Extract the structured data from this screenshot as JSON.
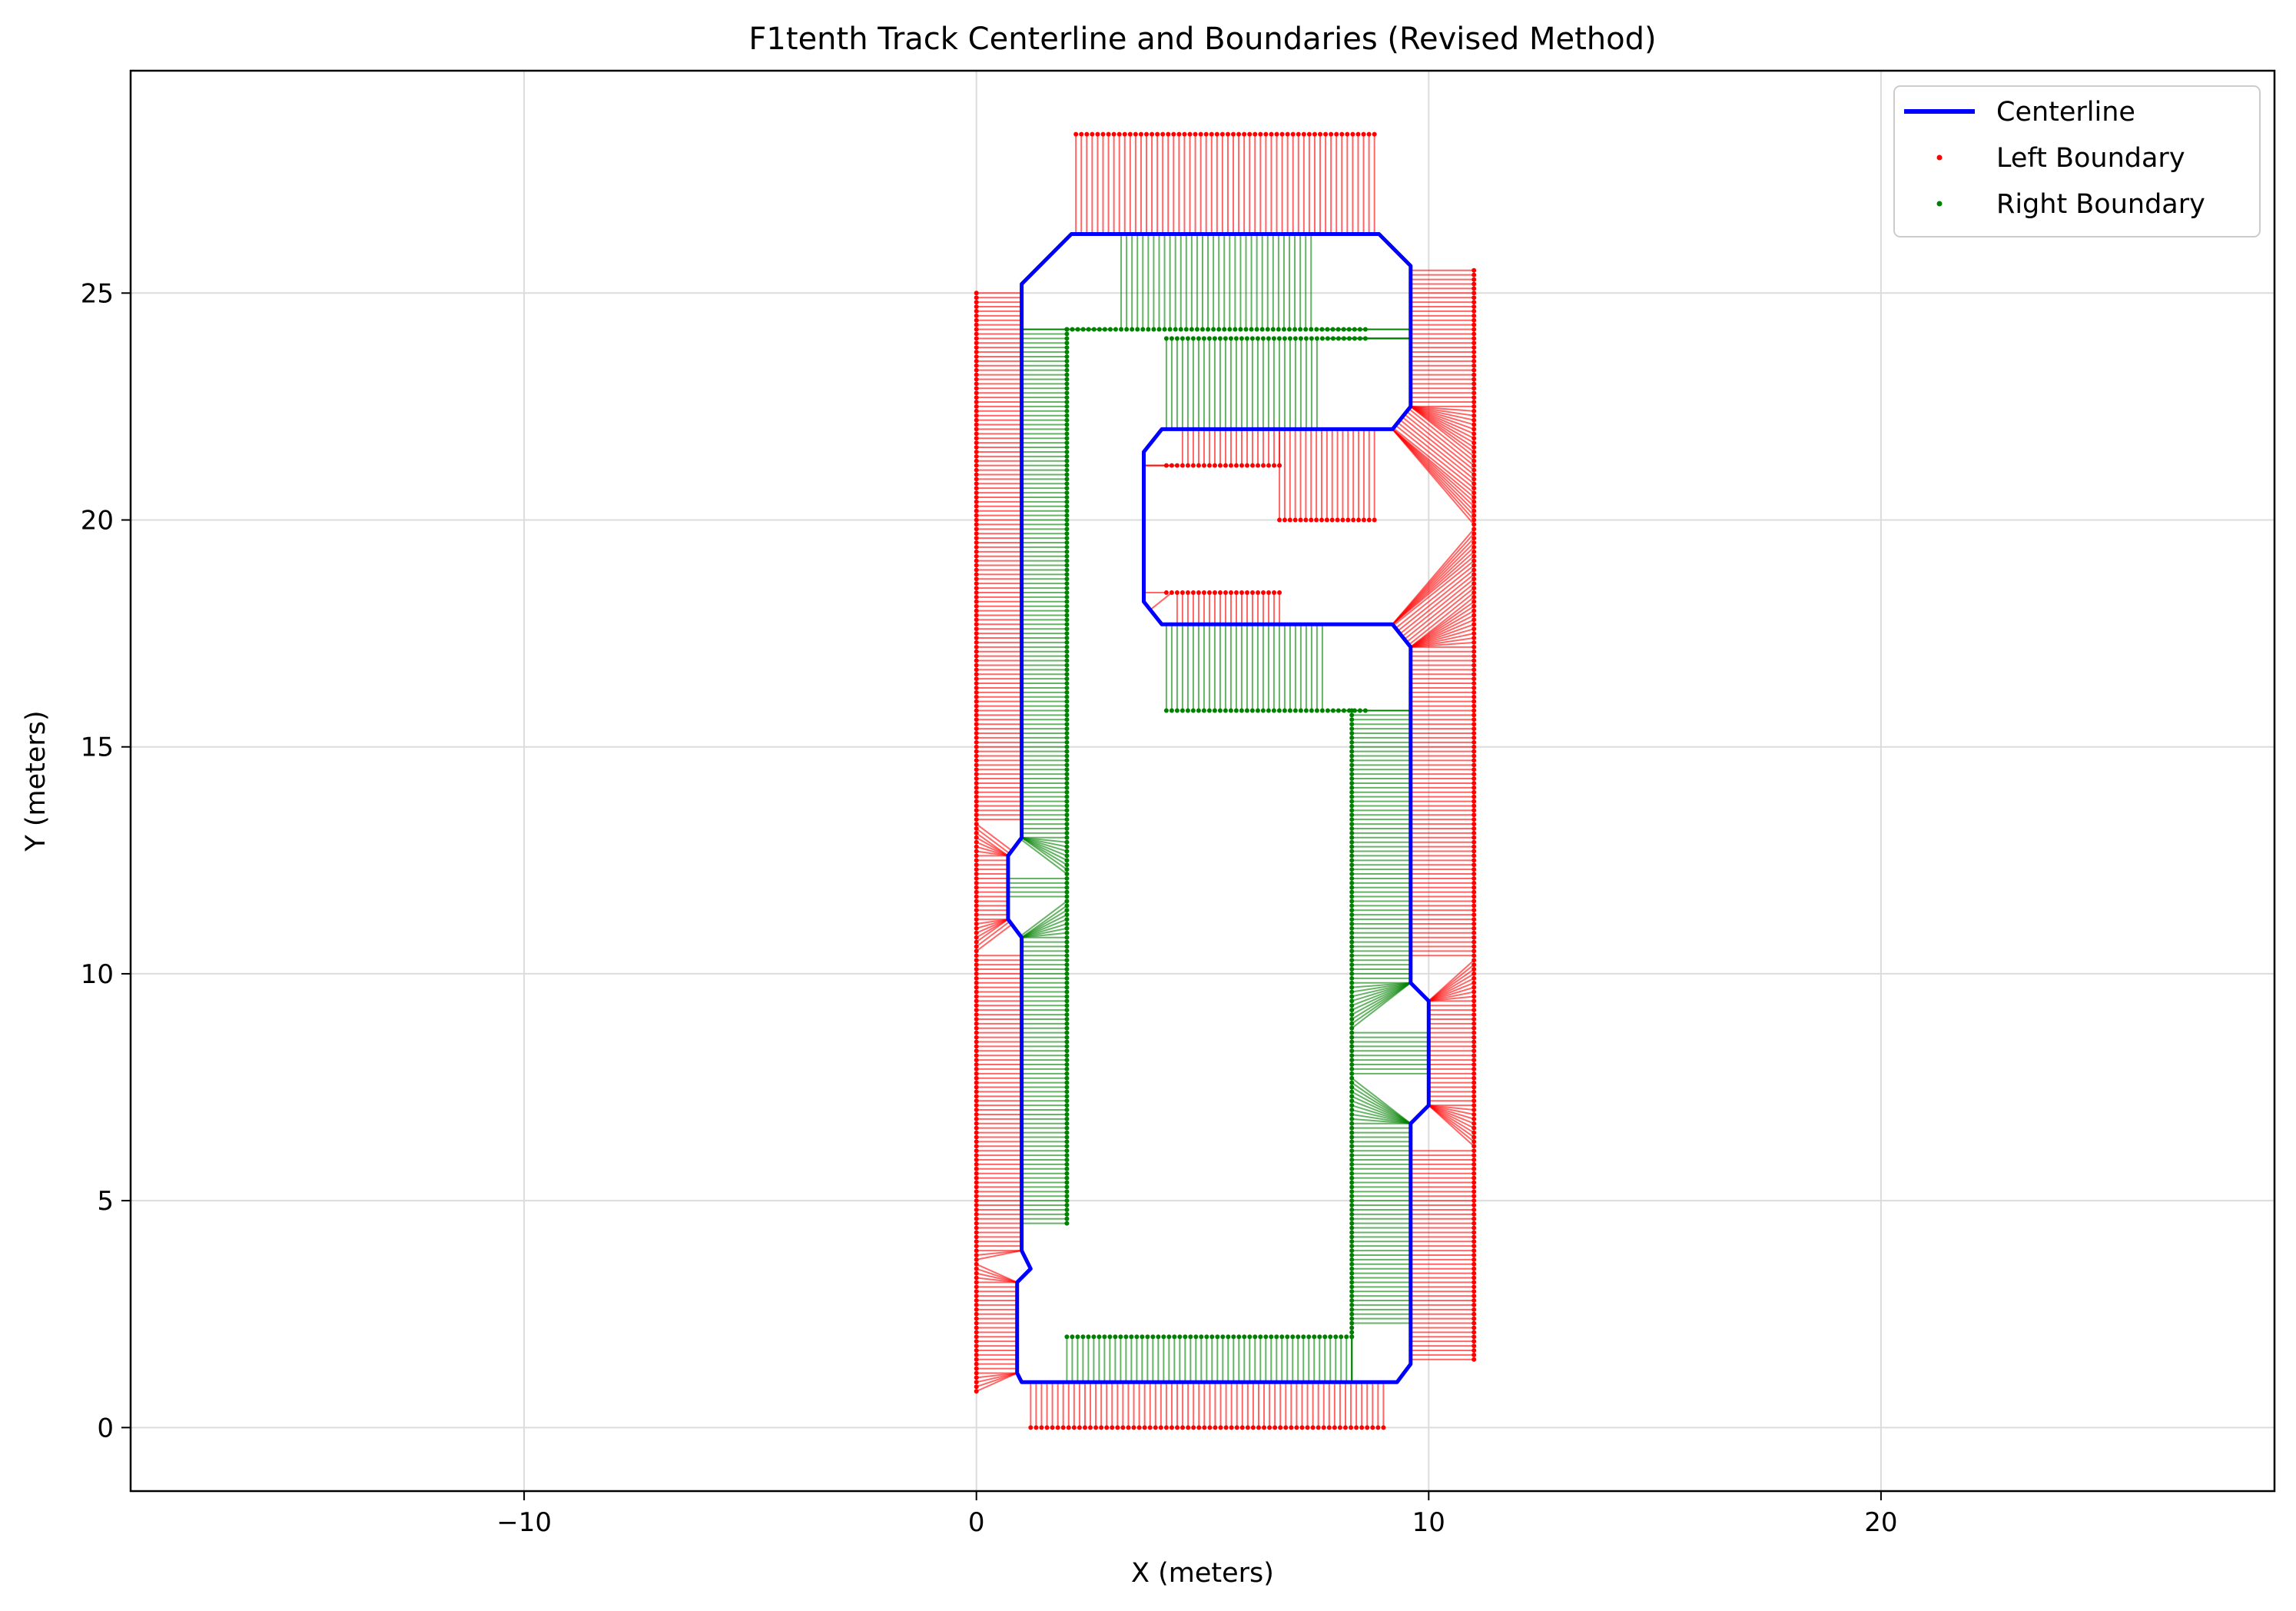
{
  "chart_data": {
    "type": "line",
    "title": "F1tenth Track Centerline and Boundaries (Revised Method)",
    "xlabel": "X (meters)",
    "ylabel": "Y (meters)",
    "xlim": [
      -18.7,
      28.7
    ],
    "ylim": [
      -1.4,
      29.9
    ],
    "xticks": [
      -10,
      0,
      10,
      20
    ],
    "xtick_labels": [
      "−10",
      "0",
      "10",
      "20"
    ],
    "yticks": [
      0,
      5,
      10,
      15,
      20,
      25
    ],
    "ytick_labels": [
      "0",
      "5",
      "10",
      "15",
      "20",
      "25"
    ],
    "grid": true,
    "legend_position": "top-right",
    "series": [
      {
        "name": "Centerline",
        "kind": "line",
        "color": "#0000ff",
        "points": [
          [
            1.0,
            1.0
          ],
          [
            9.3,
            1.0
          ],
          [
            9.6,
            1.4
          ],
          [
            9.6,
            6.7
          ],
          [
            10.0,
            7.1
          ],
          [
            10.0,
            9.4
          ],
          [
            9.6,
            9.8
          ],
          [
            9.6,
            17.2
          ],
          [
            9.2,
            17.7
          ],
          [
            4.1,
            17.7
          ],
          [
            3.7,
            18.2
          ],
          [
            3.7,
            21.5
          ],
          [
            4.1,
            22.0
          ],
          [
            9.2,
            22.0
          ],
          [
            9.6,
            22.5
          ],
          [
            9.6,
            25.6
          ],
          [
            8.9,
            26.3
          ],
          [
            2.1,
            26.3
          ],
          [
            1.0,
            25.2
          ],
          [
            1.0,
            13.0
          ],
          [
            0.7,
            12.6
          ],
          [
            0.7,
            11.2
          ],
          [
            1.0,
            10.8
          ],
          [
            1.0,
            3.9
          ],
          [
            1.2,
            3.5
          ],
          [
            0.9,
            3.2
          ],
          [
            0.9,
            1.2
          ]
        ]
      },
      {
        "name": "Left Boundary",
        "kind": "points",
        "color": "#ff0000",
        "segments": [
          {
            "x0": 0.0,
            "x1": 0.0,
            "y0": 0.8,
            "y1": 25.0,
            "step": 0.1
          },
          {
            "x0": 11.0,
            "x1": 11.0,
            "y0": 1.5,
            "y1": 25.5,
            "step": 0.1
          },
          {
            "x0": 2.2,
            "x1": 8.8,
            "y0": 28.5,
            "y1": 28.5,
            "step": 0.12
          },
          {
            "x0": 1.2,
            "x1": 9.0,
            "y0": 0.0,
            "y1": 0.0,
            "step": 0.12
          },
          {
            "x0": 4.2,
            "x1": 6.7,
            "y0": 21.2,
            "y1": 21.2,
            "step": 0.12
          },
          {
            "x0": 4.2,
            "x1": 6.7,
            "y0": 18.4,
            "y1": 18.4,
            "step": 0.12
          },
          {
            "x0": 6.7,
            "x1": 8.8,
            "y0": 20.0,
            "y1": 20.0,
            "step": 0.12
          }
        ]
      },
      {
        "name": "Right Boundary",
        "kind": "points",
        "color": "#008000",
        "segments": [
          {
            "x0": 2.0,
            "x1": 2.0,
            "y0": 4.5,
            "y1": 24.2,
            "step": 0.1
          },
          {
            "x0": 8.3,
            "x1": 8.3,
            "y0": 2.0,
            "y1": 15.8,
            "step": 0.1
          },
          {
            "x0": 2.0,
            "x1": 8.3,
            "y0": 2.0,
            "y1": 2.0,
            "step": 0.12
          },
          {
            "x0": 4.2,
            "x1": 8.6,
            "y0": 15.8,
            "y1": 15.8,
            "step": 0.12
          },
          {
            "x0": 4.2,
            "x1": 8.6,
            "y0": 24.0,
            "y1": 24.0,
            "step": 0.12
          },
          {
            "x0": 2.0,
            "x1": 8.6,
            "y0": 24.2,
            "y1": 24.2,
            "step": 0.12
          }
        ]
      }
    ],
    "legend": [
      {
        "label": "Centerline",
        "kind": "line",
        "color": "#0000ff"
      },
      {
        "label": "Left Boundary",
        "kind": "point",
        "color": "#ff0000"
      },
      {
        "label": "Right Boundary",
        "kind": "point",
        "color": "#008000"
      }
    ]
  }
}
